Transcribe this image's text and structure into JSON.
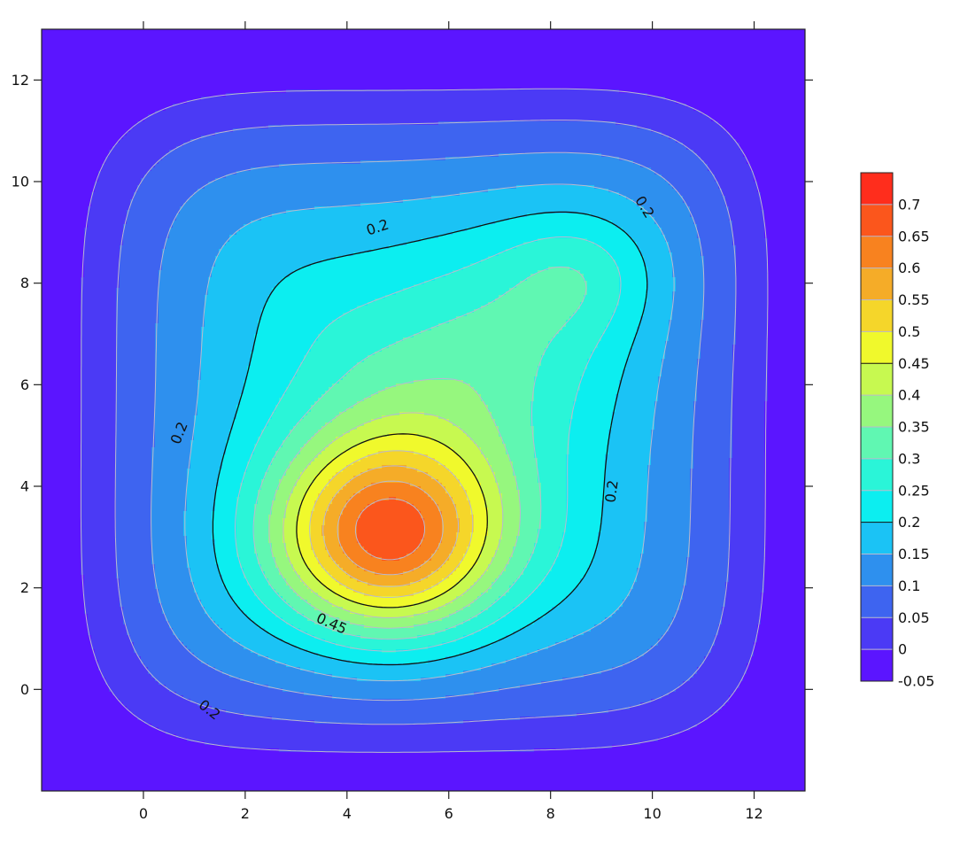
{
  "chart_data": {
    "type": "heatmap",
    "subtype": "filled-contour",
    "title": "",
    "xlabel": "",
    "ylabel": "",
    "xlim": [
      -2,
      13
    ],
    "ylim": [
      -2,
      13
    ],
    "x_ticks": [
      0,
      2,
      4,
      6,
      8,
      10,
      12
    ],
    "y_ticks": [
      0,
      2,
      4,
      6,
      8,
      10,
      12
    ],
    "grid": false,
    "levels": [
      -0.05,
      0,
      0.05,
      0.1,
      0.15,
      0.2,
      0.25,
      0.3,
      0.35,
      0.4,
      0.45,
      0.5,
      0.55,
      0.6,
      0.65,
      0.7,
      0.75
    ],
    "level_colors": [
      "#5B15FF",
      "#4B3AF5",
      "#3E64F0",
      "#2E90EE",
      "#1BC3F5",
      "#0CEEF0",
      "#2AF5D8",
      "#60F7B2",
      "#96F77E",
      "#C7F950",
      "#F0F92C",
      "#F5D62A",
      "#F5AC28",
      "#F8821F",
      "#FB561C",
      "#FF2D1C"
    ],
    "colorbar_labels": [
      "0.7",
      "0.65",
      "0.6",
      "0.55",
      "0.5",
      "0.45",
      "0.4",
      "0.35",
      "0.3",
      "0.25",
      "0.2",
      "0.15",
      "0.1",
      "0.05",
      "0",
      "-0.05"
    ],
    "highlighted_levels": [
      0.2,
      0.45
    ],
    "contour_labels": [
      {
        "text": "0.2",
        "x": 4.6,
        "y": 9.1,
        "angle": -18
      },
      {
        "text": "0.2",
        "x": 9.85,
        "y": 9.5,
        "angle": 58
      },
      {
        "text": "0.2",
        "x": 0.7,
        "y": 5.05,
        "angle": -68
      },
      {
        "text": "0.2",
        "x": 9.2,
        "y": 3.9,
        "angle": -82
      },
      {
        "text": "0.2",
        "x": 1.3,
        "y": -0.4,
        "angle": 38
      },
      {
        "text": "0.45",
        "x": 3.7,
        "y": 1.3,
        "angle": 24
      }
    ],
    "peaks": [
      {
        "x": 4.85,
        "y": 2.95,
        "value": 0.72
      },
      {
        "x": 8.6,
        "y": 8.15,
        "value": 0.34
      }
    ],
    "colorbar": {
      "position": "right"
    }
  }
}
